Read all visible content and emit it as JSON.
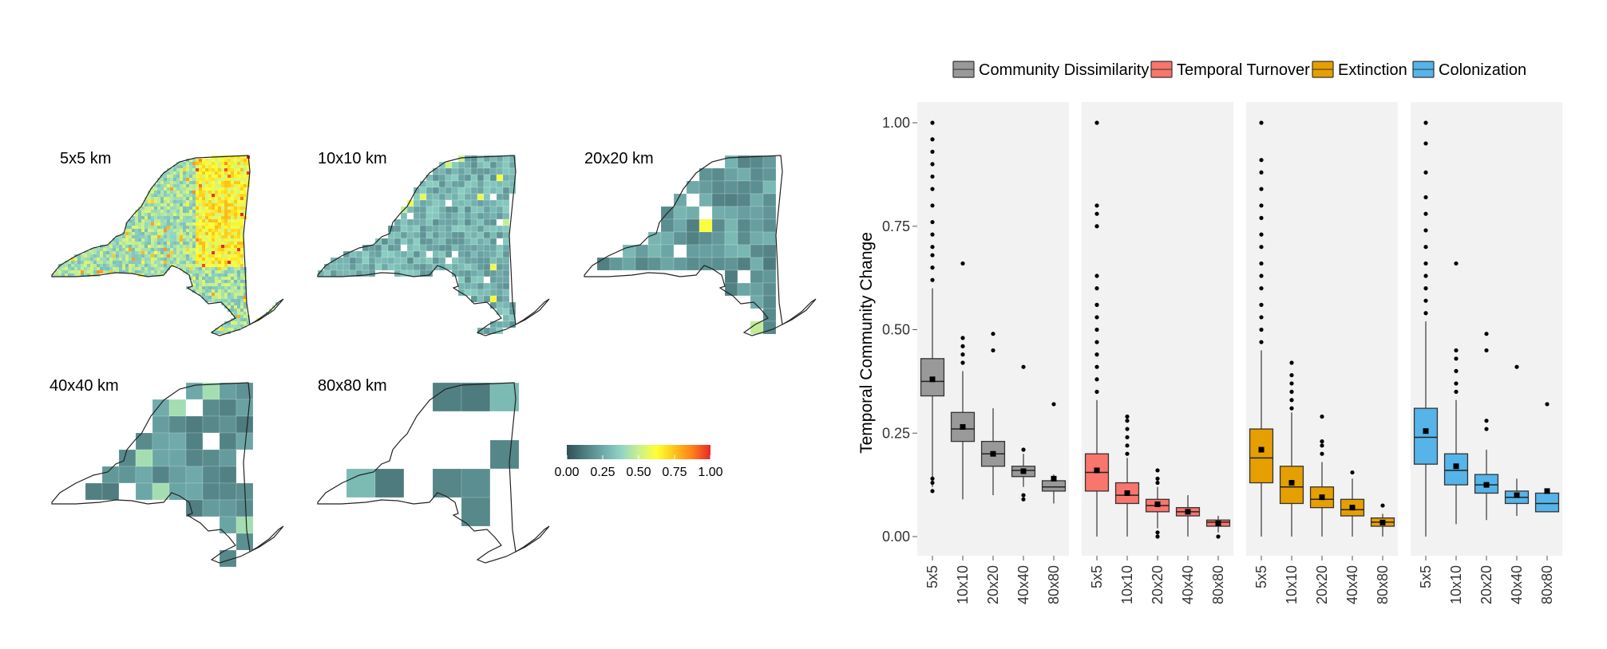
{
  "colors": {
    "panel_bg": "#f2f2f2",
    "outline": "#222222",
    "colorbar": [
      "#2f4f55",
      "#4f7d80",
      "#6fa9a9",
      "#8fd3c5",
      "#c8f08f",
      "#ffff33",
      "#ffc31a",
      "#ff7f1a",
      "#e8262a"
    ]
  },
  "maps": {
    "panels": [
      {
        "title": "5x5 km",
        "res": "5x5"
      },
      {
        "title": "10x10 km",
        "res": "10x10"
      },
      {
        "title": "20x20 km",
        "res": "20x20"
      },
      {
        "title": "40x40 km",
        "res": "40x40"
      },
      {
        "title": "80x80 km",
        "res": "80x80"
      }
    ],
    "colorbar": {
      "labels": [
        "0.00",
        "0.25",
        "0.50",
        "0.75",
        "1.00"
      ],
      "range": [
        0,
        1
      ]
    }
  },
  "chart_data": {
    "type": "box",
    "title": "",
    "ylabel": "Temporal Community Change",
    "xlabel": "",
    "ylim": [
      0,
      1
    ],
    "y_ticks": [
      "0.00",
      "0.25",
      "0.50",
      "0.75",
      "1.00"
    ],
    "categories": [
      "5x5",
      "10x10",
      "20x20",
      "40x40",
      "80x80"
    ],
    "legend": {
      "position": "top"
    },
    "grid": false,
    "series": [
      {
        "name": "Community Dissimilarity",
        "color": "#999999",
        "boxes": [
          {
            "q1": 0.34,
            "median": 0.375,
            "q3": 0.43,
            "whisker_low": 0.12,
            "whisker_high": 0.6,
            "mean": 0.38,
            "outliers": [
              0.11,
              0.13,
              0.14,
              0.62,
              0.65,
              0.68,
              0.7,
              0.73,
              0.76,
              0.8,
              0.84,
              0.87,
              0.9,
              0.93,
              0.96,
              1.0
            ]
          },
          {
            "q1": 0.23,
            "median": 0.26,
            "q3": 0.3,
            "whisker_low": 0.09,
            "whisker_high": 0.4,
            "mean": 0.265,
            "outliers": [
              0.42,
              0.44,
              0.46,
              0.48,
              0.66
            ]
          },
          {
            "q1": 0.17,
            "median": 0.2,
            "q3": 0.23,
            "whisker_low": 0.1,
            "whisker_high": 0.31,
            "mean": 0.2,
            "outliers": [
              0.45,
              0.49
            ]
          },
          {
            "q1": 0.145,
            "median": 0.16,
            "q3": 0.17,
            "whisker_low": 0.12,
            "whisker_high": 0.2,
            "mean": 0.158,
            "outliers": [
              0.09,
              0.1,
              0.21,
              0.41
            ]
          },
          {
            "q1": 0.11,
            "median": 0.12,
            "q3": 0.135,
            "whisker_low": 0.08,
            "whisker_high": 0.15,
            "mean": 0.14,
            "outliers": [
              0.32
            ]
          }
        ]
      },
      {
        "name": "Temporal Turnover",
        "color": "#f8766d",
        "boxes": [
          {
            "q1": 0.11,
            "median": 0.155,
            "q3": 0.2,
            "whisker_low": 0.0,
            "whisker_high": 0.33,
            "mean": 0.16,
            "outliers": [
              0.35,
              0.38,
              0.41,
              0.44,
              0.47,
              0.5,
              0.53,
              0.56,
              0.6,
              0.63,
              0.75,
              0.78,
              0.8,
              1.0
            ]
          },
          {
            "q1": 0.08,
            "median": 0.1,
            "q3": 0.13,
            "whisker_low": 0.0,
            "whisker_high": 0.19,
            "mean": 0.105,
            "outliers": [
              0.2,
              0.22,
              0.24,
              0.26,
              0.28,
              0.29
            ]
          },
          {
            "q1": 0.06,
            "median": 0.075,
            "q3": 0.09,
            "whisker_low": 0.02,
            "whisker_high": 0.12,
            "mean": 0.078,
            "outliers": [
              0.0,
              0.01,
              0.13,
              0.14,
              0.16
            ]
          },
          {
            "q1": 0.05,
            "median": 0.06,
            "q3": 0.07,
            "whisker_low": 0.0,
            "whisker_high": 0.1,
            "mean": 0.06,
            "outliers": []
          },
          {
            "q1": 0.025,
            "median": 0.035,
            "q3": 0.04,
            "whisker_low": 0.01,
            "whisker_high": 0.05,
            "mean": 0.032,
            "outliers": [
              0.0
            ]
          }
        ]
      },
      {
        "name": "Extinction",
        "color": "#e69f00",
        "boxes": [
          {
            "q1": 0.13,
            "median": 0.19,
            "q3": 0.26,
            "whisker_low": 0.0,
            "whisker_high": 0.45,
            "mean": 0.21,
            "outliers": [
              0.47,
              0.5,
              0.53,
              0.56,
              0.6,
              0.63,
              0.66,
              0.7,
              0.73,
              0.77,
              0.8,
              0.84,
              0.88,
              0.91,
              1.0
            ]
          },
          {
            "q1": 0.08,
            "median": 0.12,
            "q3": 0.17,
            "whisker_low": 0.0,
            "whisker_high": 0.3,
            "mean": 0.13,
            "outliers": [
              0.31,
              0.33,
              0.35,
              0.37,
              0.39,
              0.42
            ]
          },
          {
            "q1": 0.07,
            "median": 0.09,
            "q3": 0.12,
            "whisker_low": 0.0,
            "whisker_high": 0.18,
            "mean": 0.095,
            "outliers": [
              0.2,
              0.22,
              0.23,
              0.29
            ]
          },
          {
            "q1": 0.05,
            "median": 0.065,
            "q3": 0.09,
            "whisker_low": 0.0,
            "whisker_high": 0.14,
            "mean": 0.07,
            "outliers": [
              0.155
            ]
          },
          {
            "q1": 0.025,
            "median": 0.035,
            "q3": 0.045,
            "whisker_low": 0.0,
            "whisker_high": 0.055,
            "mean": 0.034,
            "outliers": [
              0.075
            ]
          }
        ]
      },
      {
        "name": "Colonization",
        "color": "#56b4e9",
        "boxes": [
          {
            "q1": 0.175,
            "median": 0.24,
            "q3": 0.31,
            "whisker_low": 0.0,
            "whisker_high": 0.52,
            "mean": 0.255,
            "outliers": [
              0.54,
              0.57,
              0.6,
              0.63,
              0.66,
              0.7,
              0.74,
              0.78,
              0.82,
              0.88,
              0.95,
              1.0
            ]
          },
          {
            "q1": 0.125,
            "median": 0.16,
            "q3": 0.2,
            "whisker_low": 0.03,
            "whisker_high": 0.33,
            "mean": 0.17,
            "outliers": [
              0.35,
              0.37,
              0.4,
              0.43,
              0.45,
              0.66
            ]
          },
          {
            "q1": 0.105,
            "median": 0.125,
            "q3": 0.15,
            "whisker_low": 0.04,
            "whisker_high": 0.21,
            "mean": 0.125,
            "outliers": [
              0.26,
              0.28,
              0.45,
              0.49
            ]
          },
          {
            "q1": 0.08,
            "median": 0.095,
            "q3": 0.11,
            "whisker_low": 0.05,
            "whisker_high": 0.14,
            "mean": 0.1,
            "outliers": [
              0.41
            ]
          },
          {
            "q1": 0.06,
            "median": 0.08,
            "q3": 0.105,
            "whisker_low": 0.06,
            "whisker_high": 0.11,
            "mean": 0.11,
            "outliers": [
              0.32
            ]
          }
        ]
      }
    ]
  }
}
